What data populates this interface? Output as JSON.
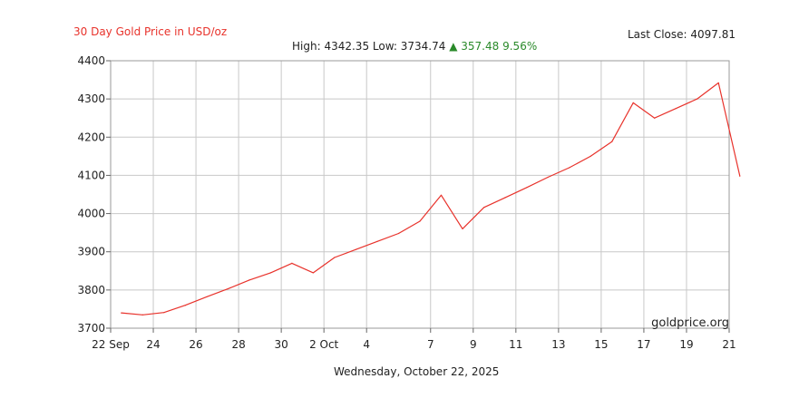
{
  "header": {
    "title": "30 Day Gold Price in USD/oz",
    "last_close_label": "Last Close:",
    "last_close_value": "4097.81",
    "high_label": "High:",
    "high_value": "4342.35",
    "low_label": "Low:",
    "low_value": "3734.74",
    "change_arrow": "▲",
    "change_value": "357.48",
    "change_pct": "9.56%"
  },
  "footer": {
    "date": "Wednesday, October 22, 2025",
    "watermark": "goldprice.org"
  },
  "colors": {
    "line": "#e8322b",
    "title": "#e8322b",
    "change": "#2a8a2a",
    "grid": "#c8c8c8"
  },
  "chart_data": {
    "type": "line",
    "title": "30 Day Gold Price in USD/oz",
    "xlabel": "",
    "ylabel": "",
    "ylim": [
      3700,
      4400
    ],
    "xlim": [
      "2025-09-22",
      "2025-10-21"
    ],
    "yticks": [
      3700,
      3800,
      3900,
      4000,
      4100,
      4200,
      4300,
      4400
    ],
    "xticks": [
      {
        "date": "2025-09-22",
        "label": "22 Sep"
      },
      {
        "date": "2025-09-24",
        "label": "24"
      },
      {
        "date": "2025-09-26",
        "label": "26"
      },
      {
        "date": "2025-09-28",
        "label": "28"
      },
      {
        "date": "2025-09-30",
        "label": "30"
      },
      {
        "date": "2025-10-02",
        "label": "2 Oct"
      },
      {
        "date": "2025-10-04",
        "label": "4"
      },
      {
        "date": "2025-10-07",
        "label": "7"
      },
      {
        "date": "2025-10-09",
        "label": "9"
      },
      {
        "date": "2025-10-11",
        "label": "11"
      },
      {
        "date": "2025-10-13",
        "label": "13"
      },
      {
        "date": "2025-10-15",
        "label": "15"
      },
      {
        "date": "2025-10-17",
        "label": "17"
      },
      {
        "date": "2025-10-19",
        "label": "19"
      },
      {
        "date": "2025-10-21",
        "label": "21"
      }
    ],
    "grid": true,
    "series": [
      {
        "points": [
          {
            "x": "2025-09-22 12:00",
            "y": 3740
          },
          {
            "x": "2025-09-23 12:00",
            "y": 3735
          },
          {
            "x": "2025-09-24 12:00",
            "y": 3741
          },
          {
            "x": "2025-09-25 12:00",
            "y": 3760
          },
          {
            "x": "2025-09-26 12:00",
            "y": 3782
          },
          {
            "x": "2025-09-27 12:00",
            "y": 3803
          },
          {
            "x": "2025-09-28 12:00",
            "y": 3826
          },
          {
            "x": "2025-09-29 12:00",
            "y": 3845
          },
          {
            "x": "2025-09-30 12:00",
            "y": 3870
          },
          {
            "x": "2025-10-01 12:00",
            "y": 3845
          },
          {
            "x": "2025-10-02 12:00",
            "y": 3885
          },
          {
            "x": "2025-10-03 12:00",
            "y": 3906
          },
          {
            "x": "2025-10-04 12:00",
            "y": 3927
          },
          {
            "x": "2025-10-05 12:00",
            "y": 3948
          },
          {
            "x": "2025-10-06 12:00",
            "y": 3980
          },
          {
            "x": "2025-10-07 12:00",
            "y": 4048
          },
          {
            "x": "2025-10-08 12:00",
            "y": 3960
          },
          {
            "x": "2025-10-09 12:00",
            "y": 4016
          },
          {
            "x": "2025-10-10 12:00",
            "y": 4042
          },
          {
            "x": "2025-10-11 12:00",
            "y": 4068
          },
          {
            "x": "2025-10-12 12:00",
            "y": 4095
          },
          {
            "x": "2025-10-13 12:00",
            "y": 4120
          },
          {
            "x": "2025-10-14 12:00",
            "y": 4150
          },
          {
            "x": "2025-10-15 12:00",
            "y": 4188
          },
          {
            "x": "2025-10-16 12:00",
            "y": 4290
          },
          {
            "x": "2025-10-17 12:00",
            "y": 4250
          },
          {
            "x": "2025-10-18 12:00",
            "y": 4275
          },
          {
            "x": "2025-10-19 12:00",
            "y": 4300
          },
          {
            "x": "2025-10-20 12:00",
            "y": 4342
          },
          {
            "x": "2025-10-21 12:00",
            "y": 4098
          }
        ]
      }
    ]
  }
}
